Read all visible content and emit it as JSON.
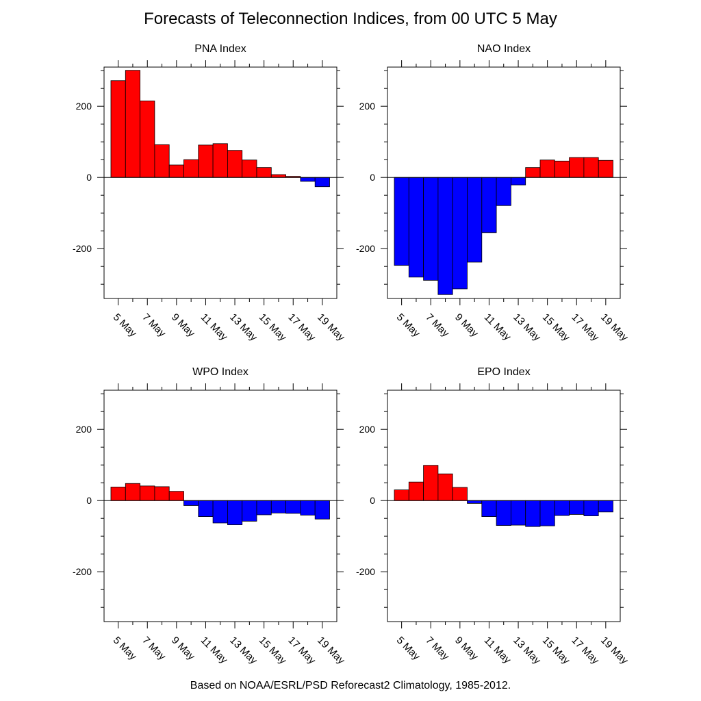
{
  "title": "Forecasts of Teleconnection Indices, from 00 UTC 5 May",
  "footer": "Based on NOAA/ESRL/PSD Reforecast2 Climatology, 1985-2012.",
  "colors": {
    "positive": "#ff0000",
    "negative": "#0000ff",
    "outline": "#000000"
  },
  "chart_data": [
    {
      "type": "bar",
      "title": "PNA Index",
      "categories": [
        "5 May",
        "6 May",
        "7 May",
        "8 May",
        "9 May",
        "10 May",
        "11 May",
        "12 May",
        "13 May",
        "14 May",
        "15 May",
        "16 May",
        "17 May",
        "18 May",
        "19 May"
      ],
      "x_tick_labels": [
        "5 May",
        "7 May",
        "9 May",
        "11 May",
        "13 May",
        "15 May",
        "17 May",
        "19 May"
      ],
      "values": [
        272,
        301,
        215,
        92,
        35,
        50,
        91,
        95,
        76,
        49,
        28,
        8,
        3,
        -11,
        -26
      ],
      "ylim": [
        -340,
        310
      ],
      "y_ticks": [
        -200,
        0,
        200
      ],
      "xlabel": "",
      "ylabel": ""
    },
    {
      "type": "bar",
      "title": "NAO Index",
      "categories": [
        "5 May",
        "6 May",
        "7 May",
        "8 May",
        "9 May",
        "10 May",
        "11 May",
        "12 May",
        "13 May",
        "14 May",
        "15 May",
        "16 May",
        "17 May",
        "18 May",
        "19 May"
      ],
      "x_tick_labels": [
        "5 May",
        "7 May",
        "9 May",
        "11 May",
        "13 May",
        "15 May",
        "17 May",
        "19 May"
      ],
      "values": [
        -247,
        -280,
        -289,
        -329,
        -313,
        -238,
        -155,
        -79,
        -21,
        28,
        49,
        46,
        56,
        56,
        48
      ],
      "ylim": [
        -340,
        310
      ],
      "y_ticks": [
        -200,
        0,
        200
      ],
      "xlabel": "",
      "ylabel": ""
    },
    {
      "type": "bar",
      "title": "WPO Index",
      "categories": [
        "5 May",
        "6 May",
        "7 May",
        "8 May",
        "9 May",
        "10 May",
        "11 May",
        "12 May",
        "13 May",
        "14 May",
        "15 May",
        "16 May",
        "17 May",
        "18 May",
        "19 May"
      ],
      "x_tick_labels": [
        "5 May",
        "7 May",
        "9 May",
        "11 May",
        "13 May",
        "15 May",
        "17 May",
        "19 May"
      ],
      "values": [
        38,
        48,
        41,
        39,
        26,
        -14,
        -45,
        -63,
        -68,
        -58,
        -40,
        -35,
        -36,
        -41,
        -52
      ],
      "ylim": [
        -340,
        310
      ],
      "y_ticks": [
        -200,
        0,
        200
      ],
      "xlabel": "",
      "ylabel": ""
    },
    {
      "type": "bar",
      "title": "EPO Index",
      "categories": [
        "5 May",
        "6 May",
        "7 May",
        "8 May",
        "9 May",
        "10 May",
        "11 May",
        "12 May",
        "13 May",
        "14 May",
        "15 May",
        "16 May",
        "17 May",
        "18 May",
        "19 May"
      ],
      "x_tick_labels": [
        "5 May",
        "7 May",
        "9 May",
        "11 May",
        "13 May",
        "15 May",
        "17 May",
        "19 May"
      ],
      "values": [
        30,
        52,
        99,
        75,
        37,
        -8,
        -45,
        -70,
        -69,
        -73,
        -71,
        -42,
        -39,
        -43,
        -32
      ],
      "ylim": [
        -340,
        310
      ],
      "y_ticks": [
        -200,
        0,
        200
      ],
      "xlabel": "",
      "ylabel": ""
    }
  ]
}
